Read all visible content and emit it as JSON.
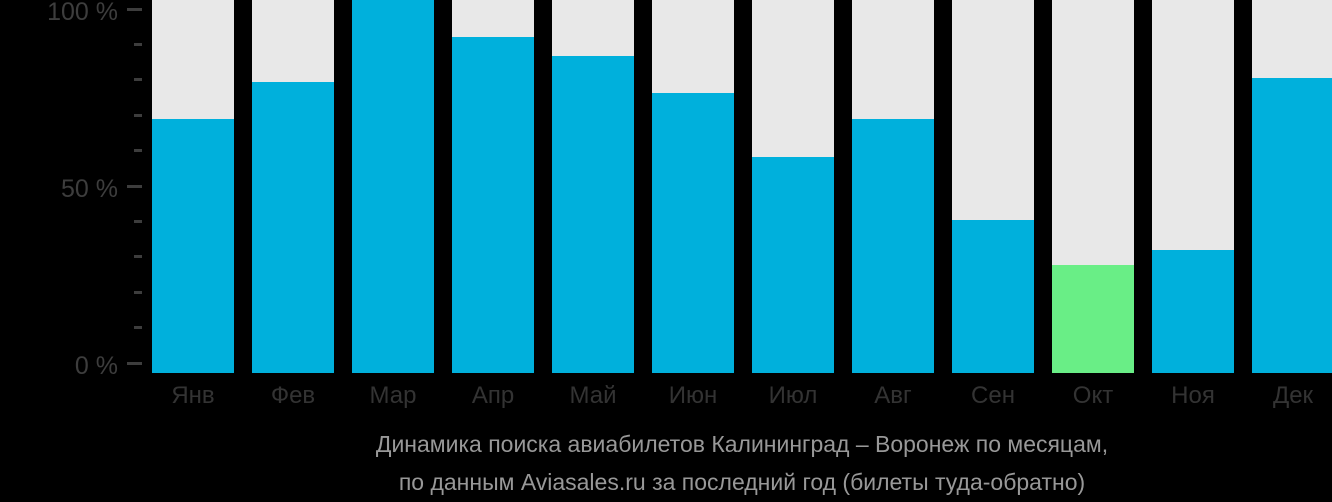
{
  "chart_data": {
    "type": "bar",
    "title": "Динамика поиска авиабилетов Калининград – Воронеж по месяцам, по данным Aviasales.ru за последний год (билеты туда-обратно)",
    "title_lines": [
      "Динамика поиска авиабилетов Калининград – Воронеж по месяцам,",
      "по данным Aviasales.ru за последний год (билеты туда-обратно)"
    ],
    "categories": [
      "Янв",
      "Фев",
      "Мар",
      "Апр",
      "Май",
      "Июн",
      "Июл",
      "Авг",
      "Сен",
      "Окт",
      "Ноя",
      "Дек"
    ],
    "values": [
      68,
      78,
      100,
      90,
      85,
      75,
      58,
      68,
      41,
      29,
      33,
      79
    ],
    "unit": "%",
    "highlight": {
      "index": 9,
      "category": "Окт",
      "value": 29
    },
    "y_axis": {
      "ylim": [
        0,
        100
      ],
      "labeled_ticks": [
        {
          "value": 100,
          "label": "100 %"
        },
        {
          "value": 50,
          "label": "50 %"
        },
        {
          "value": 0,
          "label": "0 %"
        }
      ],
      "minor_ticks": [
        90,
        80,
        70,
        60,
        40,
        30,
        20,
        10
      ]
    },
    "xlabel": "",
    "ylabel": "",
    "legend": null,
    "grid": false,
    "colors": {
      "bar": "#00b0dc",
      "bar_highlight": "#69ee86",
      "bar_track": "#e8e8e8",
      "axis_text": "#3d3d3d",
      "month_text": "#333333",
      "title_text": "#989898",
      "background": "#000000"
    }
  }
}
